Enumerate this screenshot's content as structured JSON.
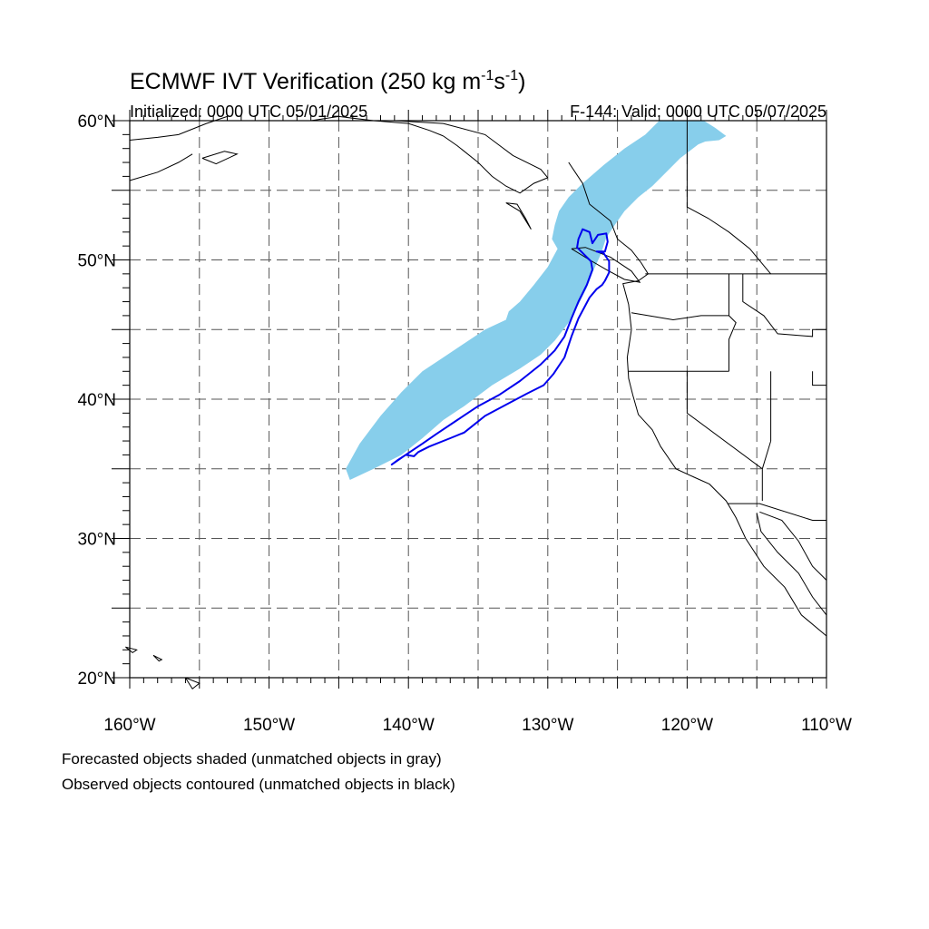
{
  "title": {
    "prefix": "ECMWF IVT Verification (250 kg m",
    "exp1": "-1",
    "mid": "s",
    "exp2": "-1",
    "suffix": ")"
  },
  "initialized": "Initialized: 0000 UTC 05/01/2025",
  "valid": "F-144: Valid: 0000 UTC 05/07/2025",
  "footnotes": {
    "line1": "Forecasted objects shaded (unmatched objects in gray)",
    "line2": "Observed objects contoured (unmatched objects in black)"
  },
  "map": {
    "lon_range": [
      -160,
      -110
    ],
    "lat_range": [
      20,
      60
    ],
    "lon_ticks": [
      {
        "value": -160,
        "label": "160°W"
      },
      {
        "value": -150,
        "label": "150°W"
      },
      {
        "value": -140,
        "label": "140°W"
      },
      {
        "value": -130,
        "label": "130°W"
      },
      {
        "value": -120,
        "label": "120°W"
      },
      {
        "value": -110,
        "label": "110°W"
      }
    ],
    "lat_ticks": [
      {
        "value": 20,
        "label": "20°N"
      },
      {
        "value": 30,
        "label": "30°N"
      },
      {
        "value": 40,
        "label": "40°N"
      },
      {
        "value": 50,
        "label": "50°N"
      },
      {
        "value": 60,
        "label": "60°N"
      }
    ],
    "grid_lons": [
      -155,
      -150,
      -145,
      -140,
      -135,
      -130,
      -125,
      -120,
      -115
    ],
    "grid_lats": [
      25,
      30,
      35,
      40,
      45,
      50,
      55
    ],
    "colors": {
      "forecast": "#87ceeb",
      "observed": "#0000ee",
      "coast": "#000000",
      "grid": "#555555"
    },
    "forecast_object": [
      [
        -144.2,
        34.2
      ],
      [
        -142.5,
        35.0
      ],
      [
        -140.5,
        36.0
      ],
      [
        -139.0,
        37.2
      ],
      [
        -137.5,
        38.5
      ],
      [
        -136.0,
        39.5
      ],
      [
        -134.0,
        41.0
      ],
      [
        -132.0,
        42.2
      ],
      [
        -130.5,
        43.2
      ],
      [
        -129.5,
        44.2
      ],
      [
        -128.5,
        45.5
      ],
      [
        -127.8,
        46.8
      ],
      [
        -127.2,
        48.0
      ],
      [
        -126.7,
        49.3
      ],
      [
        -126.2,
        50.4
      ],
      [
        -125.8,
        51.6
      ],
      [
        -125.2,
        52.5
      ],
      [
        -124.5,
        53.5
      ],
      [
        -123.5,
        54.5
      ],
      [
        -122.5,
        55.3
      ],
      [
        -121.5,
        56.3
      ],
      [
        -120.5,
        57.3
      ],
      [
        -119.2,
        58.3
      ],
      [
        -118.7,
        58.5
      ],
      [
        -117.7,
        58.6
      ],
      [
        -117.2,
        58.9
      ],
      [
        -118.0,
        59.5
      ],
      [
        -118.8,
        60.0
      ],
      [
        -122.0,
        60.0
      ],
      [
        -123.0,
        59.0
      ],
      [
        -124.5,
        58.0
      ],
      [
        -126.0,
        56.8
      ],
      [
        -127.5,
        55.5
      ],
      [
        -128.5,
        54.5
      ],
      [
        -129.2,
        53.5
      ],
      [
        -129.5,
        52.5
      ],
      [
        -129.7,
        51.5
      ],
      [
        -129.3,
        50.8
      ],
      [
        -130.0,
        49.5
      ],
      [
        -131.0,
        48.2
      ],
      [
        -132.0,
        47.0
      ],
      [
        -132.8,
        46.3
      ],
      [
        -133.0,
        45.7
      ],
      [
        -134.5,
        45.0
      ],
      [
        -136.0,
        44.0
      ],
      [
        -137.5,
        43.0
      ],
      [
        -139.0,
        42.0
      ],
      [
        -140.5,
        40.5
      ],
      [
        -142.0,
        38.8
      ],
      [
        -143.5,
        36.8
      ],
      [
        -144.5,
        35.0
      ]
    ],
    "observed_object": [
      [
        -141.2,
        35.3
      ],
      [
        -140.2,
        36.0
      ],
      [
        -139.0,
        36.8
      ],
      [
        -138.0,
        37.5
      ],
      [
        -136.5,
        38.5
      ],
      [
        -135.0,
        39.5
      ],
      [
        -133.5,
        40.3
      ],
      [
        -132.0,
        41.3
      ],
      [
        -130.5,
        42.5
      ],
      [
        -129.5,
        43.5
      ],
      [
        -128.8,
        44.5
      ],
      [
        -128.3,
        45.8
      ],
      [
        -127.8,
        47.0
      ],
      [
        -127.2,
        48.2
      ],
      [
        -126.8,
        49.3
      ],
      [
        -126.9,
        49.9
      ],
      [
        -127.3,
        50.3
      ],
      [
        -127.9,
        50.9
      ],
      [
        -127.8,
        51.5
      ],
      [
        -127.5,
        52.2
      ],
      [
        -127.0,
        52.0
      ],
      [
        -126.8,
        51.2
      ],
      [
        -126.4,
        51.8
      ],
      [
        -125.8,
        51.9
      ],
      [
        -125.7,
        51.3
      ],
      [
        -125.9,
        50.6
      ],
      [
        -126.5,
        50.6
      ],
      [
        -126.0,
        50.5
      ],
      [
        -125.6,
        49.9
      ],
      [
        -125.6,
        49.1
      ],
      [
        -125.9,
        48.5
      ],
      [
        -126.1,
        48.2
      ],
      [
        -126.5,
        47.9
      ],
      [
        -127.0,
        47.3
      ],
      [
        -127.8,
        45.8
      ],
      [
        -128.3,
        44.5
      ],
      [
        -128.8,
        43.0
      ],
      [
        -129.6,
        41.8
      ],
      [
        -130.3,
        41.0
      ],
      [
        -131.5,
        40.4
      ],
      [
        -133.0,
        39.6
      ],
      [
        -134.5,
        38.8
      ],
      [
        -135.5,
        38.0
      ],
      [
        -136.0,
        37.6
      ],
      [
        -137.0,
        37.2
      ],
      [
        -138.5,
        36.6
      ],
      [
        -139.3,
        36.2
      ],
      [
        -139.6,
        35.9
      ],
      [
        -140.2,
        36.0
      ],
      [
        -140.8,
        35.6
      ]
    ]
  }
}
